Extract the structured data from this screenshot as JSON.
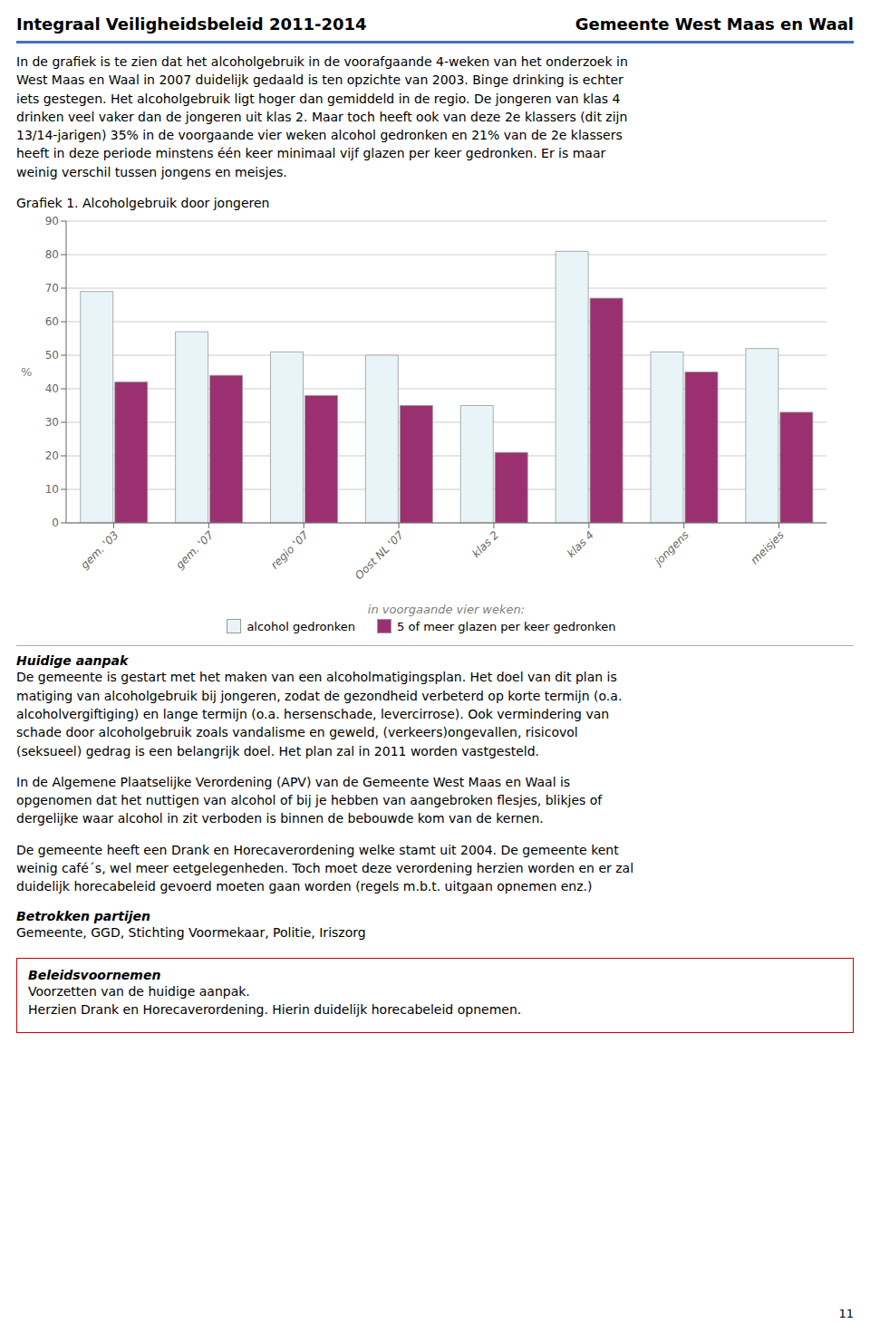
{
  "chart_data": {
    "type": "bar",
    "title": "Grafiek 1. Alcoholgebruik door jongeren",
    "xlabel": "in voorgaande vier weken:",
    "ylabel": "%",
    "categories": [
      "gem. '03",
      "gem. '07",
      "regio '07",
      "Oost NL '07",
      "klas 2",
      "klas 4",
      "jongens",
      "meisjes"
    ],
    "series": [
      {
        "name": "alcohol gedronken",
        "color": "#e8f4f8",
        "values": [
          69,
          57,
          51,
          50,
          35,
          81,
          51,
          52
        ]
      },
      {
        "name": "5 of meer glazen per keer gedronken",
        "color": "#9b3070",
        "values": [
          42,
          44,
          38,
          35,
          21,
          67,
          45,
          33
        ]
      }
    ],
    "ylim": [
      0,
      90
    ],
    "yticks": [
      0,
      10,
      20,
      30,
      40,
      50,
      60,
      70,
      80,
      90
    ],
    "grid": true,
    "legend": "bottom",
    "annotations": [
      "Integraal Veiligheidsbeleid 2011-2014",
      "Gemeente West Maas en Waal",
      "In de grafiek is te zien dat het alcoholgebruik in de voorafgaande 4-weken van het onderzoek in\nWest Maas en Waal in 2007 duidelijk gedaald is ten opzichte van 2003. Binge drinking is echter\niets gestegen. Het alcoholgebruik ligt hoger dan gemiddeld in de regio. De jongeren van klas 4\ndrinken veel vaker dan de jongeren uit klas 2. Maar toch heeft ook van deze 2e klassers (dit zijn\n13/14-jarigen) 35% in de voorgaande vier weken alcohol gedronken en 21% van de 2e klassers\nheeft in deze periode minstens één keer minimaal vijf glazen per keer gedronken. Er is maar\nweinig verschil tussen jongens en meisjes.",
      "Huidige aanpak",
      "De gemeente is gestart met het maken van een alcoholmatigingsplan. Het doel van dit plan is\nmatiging van alcoholgebruik bij jongeren, zodat de gezondheid verbeterd op korte termijn (o.a.\nalcoholvergiftiging) en lange termijn (o.a. hersenschade, levercirrose). Ook vermindering van\nschade door alcoholgebruik zoals vandalisme en geweld, (verkeers)ongevallen, risicovol\n(seksueel) gedrag is een belangrijk doel. Het plan zal in 2011 worden vastgesteld.",
      "In de Algemene Plaatselijke Verordening (APV) van de Gemeente West Maas en Waal is\nopgenomen dat het nuttigen van alcohol of bij je hebben van aangebroken flesjes, blikjes of\ndergelijke waar alcohol in zit verboden is binnen de bebouwde kom van de kernen.",
      "De gemeente heeft een Drank en Horecaverordening welke stamt uit 2004. De gemeente kent\nweinig café´s, wel meer eetgelegenheden. Toch moet deze verordening herzien worden en er zal\nduidelijk horecabeleid gevoerd moeten gaan worden (regels m.b.t. uitgaan opnemen enz.)",
      "Betrokken partijen",
      "Gemeente, GGD, Stichting Voormekaar, Politie, Iriszorg",
      "Beleidsvoornemen",
      "Voorzetten van de huidige aanpak.",
      "Herzien Drank en Horecaverordening. Hierin duidelijk horecabeleid opnemen.",
      "11"
    ]
  }
}
